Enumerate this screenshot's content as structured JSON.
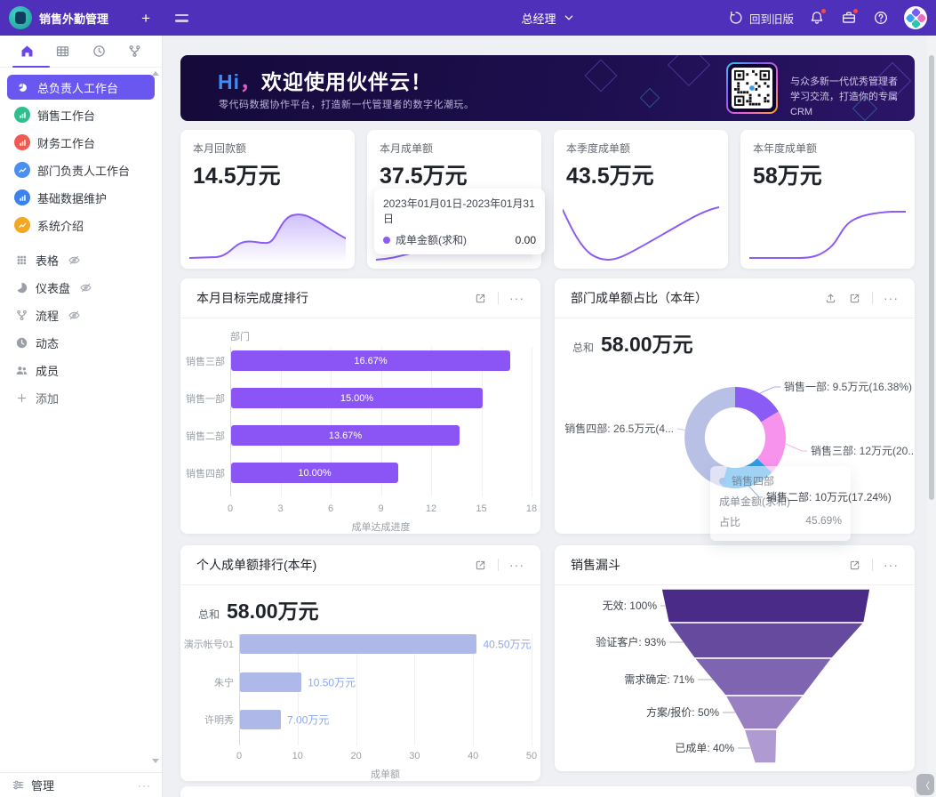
{
  "topbar": {
    "app_title": "销售外勤管理",
    "add_glyph": "+",
    "role_label": "总经理",
    "back_label": "回到旧版",
    "bar_color": "#4e30ba"
  },
  "sidebar": {
    "tabs": [
      {
        "icon": "home-icon",
        "active": true
      },
      {
        "icon": "table-icon",
        "active": false
      },
      {
        "icon": "history-icon",
        "active": false
      },
      {
        "icon": "flow-icon",
        "active": false
      }
    ],
    "workspaces": [
      {
        "label": "总负责人工作台",
        "icon": "pie",
        "color": "#6957ef",
        "selected": true
      },
      {
        "label": "销售工作台",
        "icon": "bar",
        "color": "#2fbf8f",
        "selected": false
      },
      {
        "label": "财务工作台",
        "icon": "bar",
        "color": "#f05a50",
        "selected": false
      },
      {
        "label": "部门负责人工作台",
        "icon": "zig",
        "color": "#4a90f2",
        "selected": false
      },
      {
        "label": "基础数据维护",
        "icon": "bar",
        "color": "#3b82f0",
        "selected": false
      },
      {
        "label": "系统介绍",
        "icon": "zig",
        "color": "#f5a623",
        "selected": false
      }
    ],
    "views": [
      {
        "label": "表格",
        "icon": "grid9",
        "hidden_eye": true
      },
      {
        "label": "仪表盘",
        "icon": "piegray",
        "hidden_eye": true
      },
      {
        "label": "流程",
        "icon": "flowgray",
        "hidden_eye": true
      },
      {
        "label": "动态",
        "icon": "clockfill",
        "hidden_eye": false
      },
      {
        "label": "成员",
        "icon": "people",
        "hidden_eye": false
      }
    ],
    "add_label": "添加",
    "manage_label": "管理"
  },
  "banner": {
    "title_hi": "Hi",
    "title_comma": "，",
    "title_rest": "欢迎使用伙伴云！",
    "subtitle": "零代码数据协作平台，打造新一代管理者的数字化潮玩。",
    "qr_caption_line1": "与众多新一代优秀管理者",
    "qr_caption_line2": "学习交流，打造你的专属CRM"
  },
  "stats": [
    {
      "label": "本月回款额",
      "value": "14.5万元",
      "spark": "area1"
    },
    {
      "label": "本月成单额",
      "value": "37.5万元",
      "spark": "line2",
      "tooltip": {
        "date_range": "2023年01月01日-2023年01月31日",
        "series_label": "成单金额(求和)",
        "series_value": "0.00"
      }
    },
    {
      "label": "本季度成单额",
      "value": "43.5万元",
      "spark": "line3"
    },
    {
      "label": "本年度成单额",
      "value": "58万元",
      "spark": "line4"
    }
  ],
  "chart_data": {
    "goal_ranking": {
      "type": "bar",
      "title": "本月目标完成度排行",
      "y_axis_title": "部门",
      "x_axis_title": "成单达成进度",
      "x_ticks": [
        0,
        3,
        6,
        9,
        12,
        15,
        18
      ],
      "xlim": [
        0,
        18
      ],
      "categories": [
        "销售三部",
        "销售一部",
        "销售二部",
        "销售四部"
      ],
      "values": [
        16.67,
        15.0,
        13.67,
        10.0
      ],
      "value_labels": [
        "16.67%",
        "15.00%",
        "13.67%",
        "10.00%"
      ],
      "bar_color": "#8b55f6"
    },
    "dept_share": {
      "type": "pie",
      "title": "部门成单额占比（本年）",
      "total_label": "总和",
      "total_value": "58.00万元",
      "slices": [
        {
          "name": "销售一部",
          "callout": "销售一部: 9.5万元(16.38%)",
          "pct": 16.38,
          "color": "#8a5cf5"
        },
        {
          "name": "销售三部",
          "callout": "销售三部: 12万元(20....",
          "pct": 20.69,
          "color": "#f792ed"
        },
        {
          "name": "销售二部",
          "callout": "销售二部: 10万元(17.24%)",
          "pct": 17.24,
          "color": "#2e9ce8"
        },
        {
          "name": "销售四部",
          "callout": "销售四部: 26.5万元(4...",
          "pct": 45.69,
          "color": "#b9c0e6"
        }
      ],
      "tooltip": {
        "name": "销售四部",
        "row1_label": "成单金额(求和)",
        "row2_label": "占比",
        "row2_value": "45.69%"
      }
    },
    "personal_ranking": {
      "type": "bar",
      "title": "个人成单额排行(本年)",
      "total_label": "总和",
      "total_value": "58.00万元",
      "x_axis_title": "成单额",
      "x_ticks": [
        0,
        10,
        20,
        30,
        40,
        50
      ],
      "xlim": [
        0,
        50
      ],
      "categories": [
        "演示帐号01",
        "朱宁",
        "许明秀"
      ],
      "values": [
        40.5,
        10.5,
        7.0
      ],
      "value_labels": [
        "40.50万元",
        "10.50万元",
        "7.00万元"
      ],
      "bar_color": "#aeb9ea"
    },
    "funnel": {
      "type": "funnel",
      "title": "销售漏斗",
      "stages": [
        {
          "label": "无效: 100%",
          "pct": 100,
          "color": "#4a2c88"
        },
        {
          "label": "验证客户: 93%",
          "pct": 93,
          "color": "#654a9e"
        },
        {
          "label": "需求确定: 71%",
          "pct": 71,
          "color": "#7f64b2"
        },
        {
          "label": "方案/报价: 50%",
          "pct": 50,
          "color": "#9880c2"
        },
        {
          "label": "已成单: 40%",
          "pct": 40,
          "color": "#b09ad2"
        }
      ]
    }
  },
  "misc": {
    "collapse_glyph": "〈",
    "more_glyph": "···"
  }
}
